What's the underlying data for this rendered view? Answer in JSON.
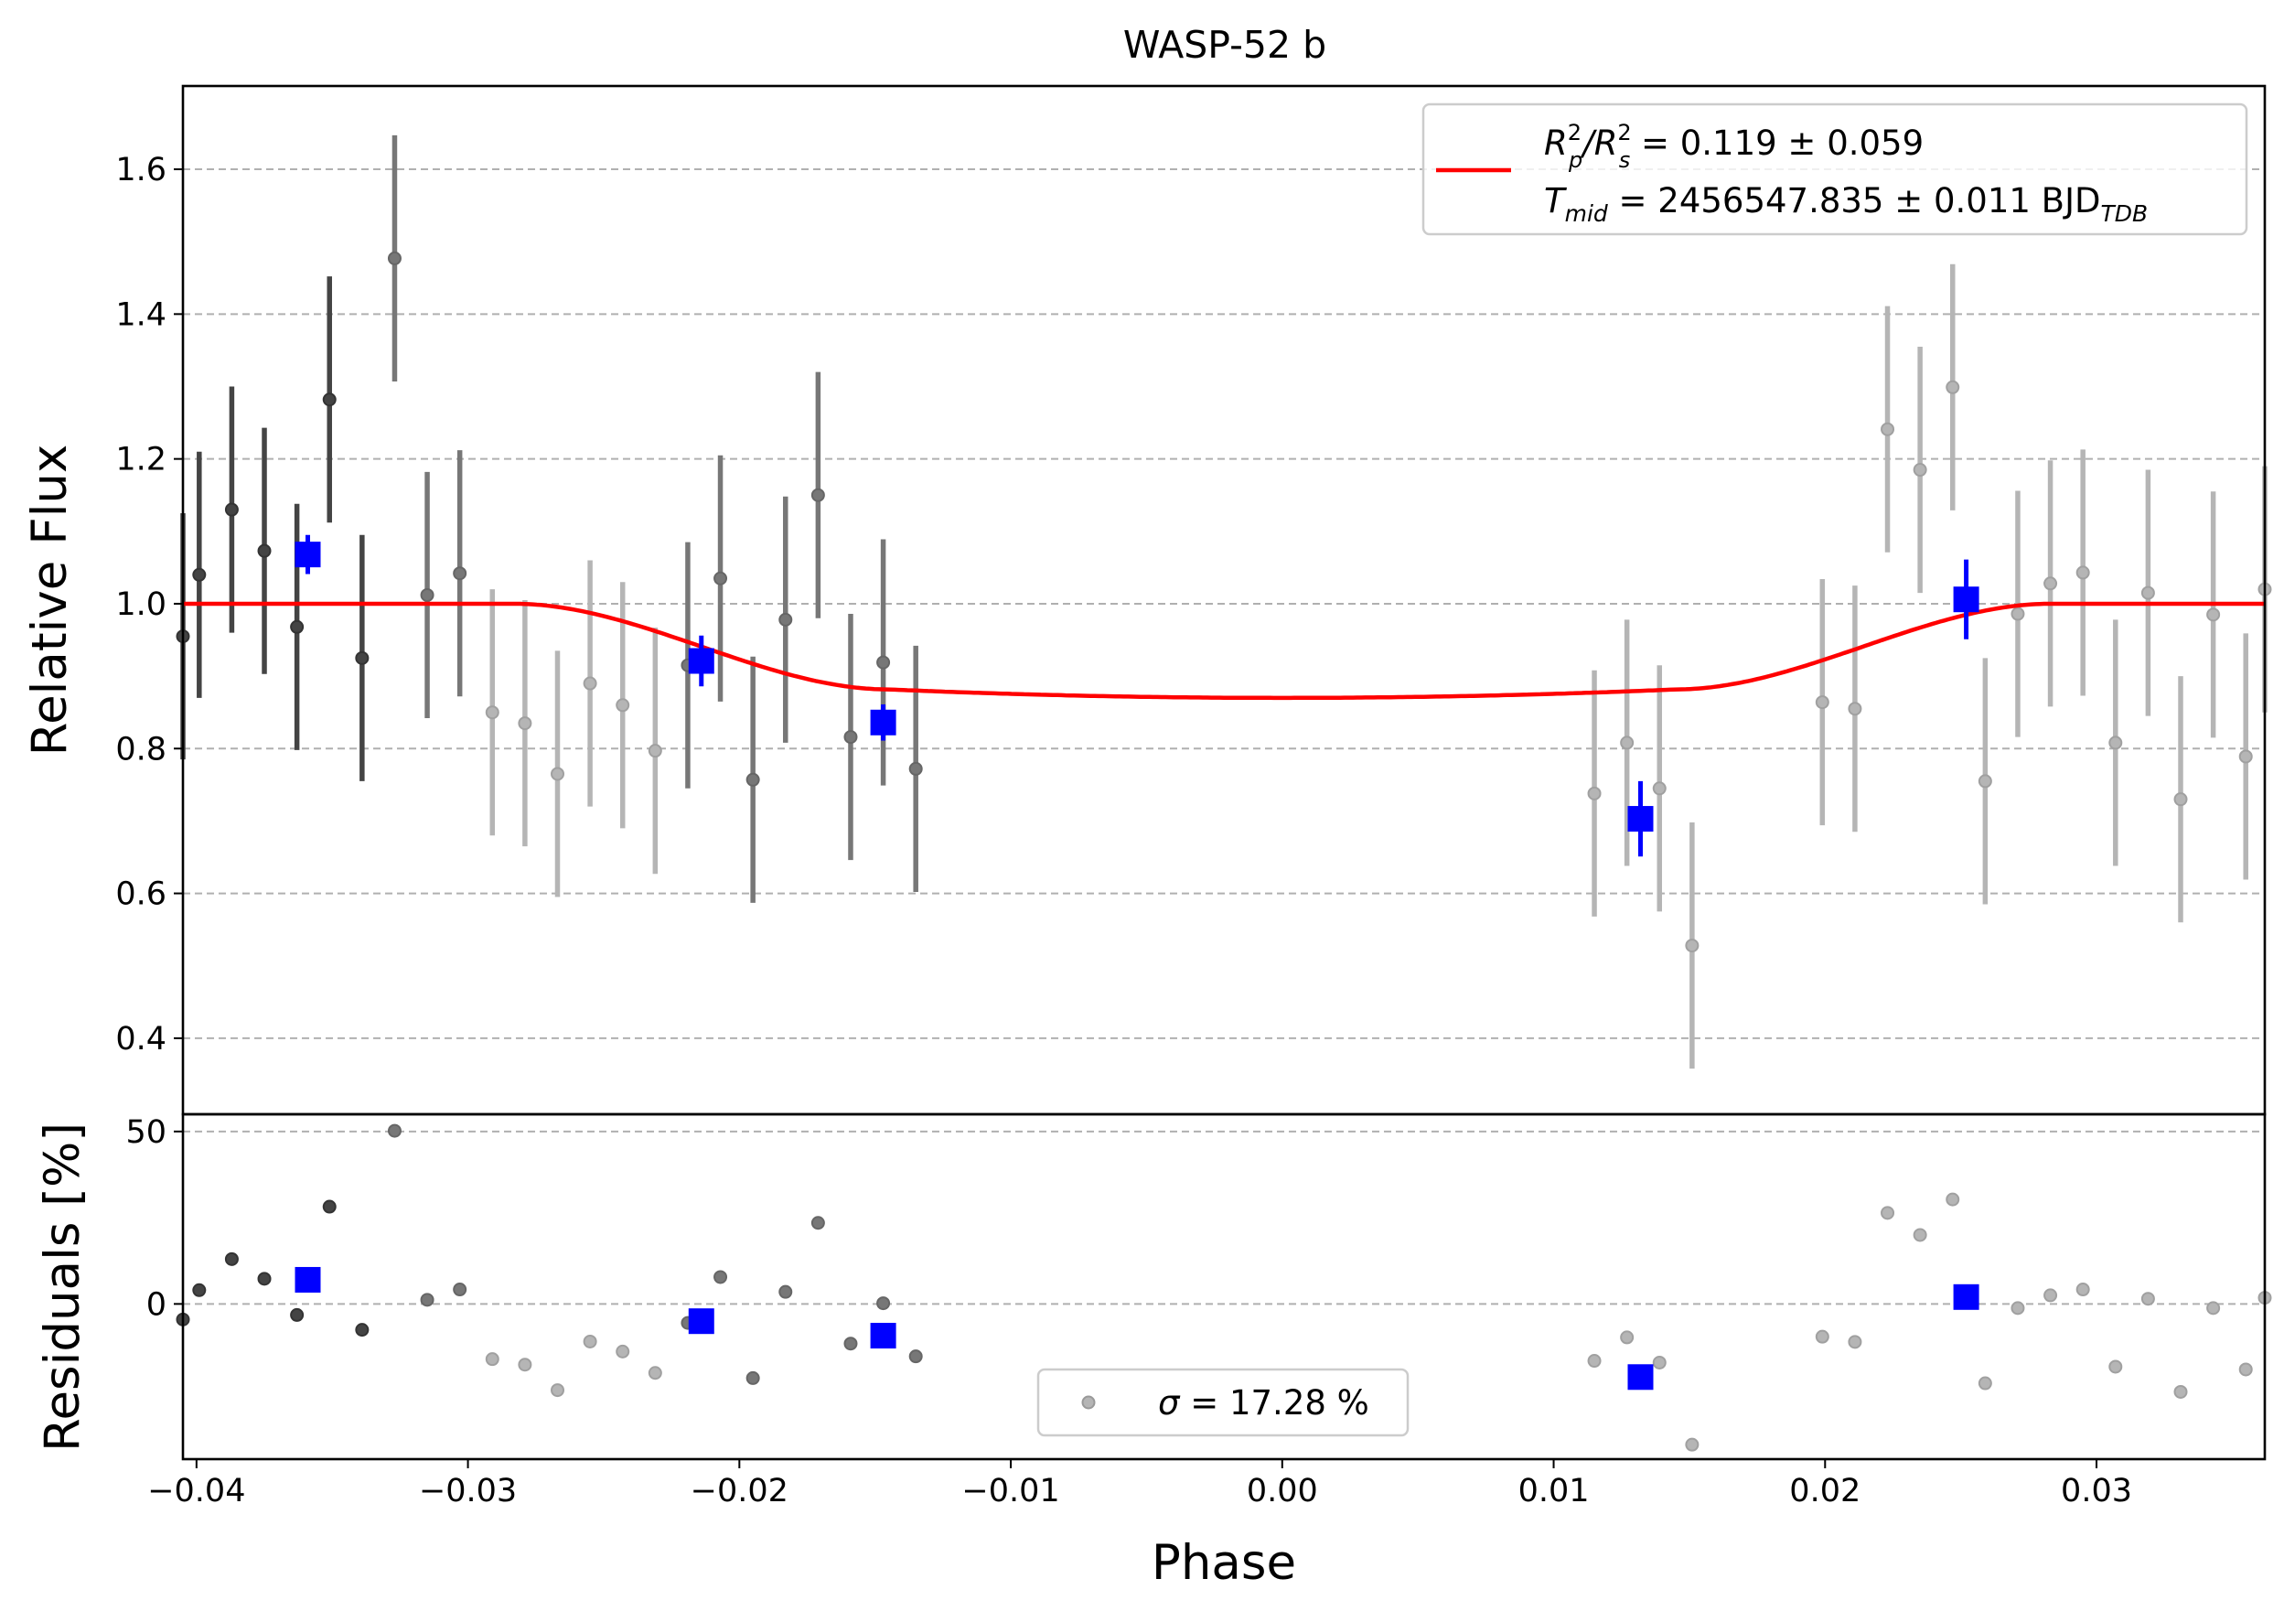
{
  "chart_data": {
    "type": "scatter",
    "title": "WASP-52 b",
    "xlabel": "Phase",
    "xlim": [
      -0.0405,
      0.0362
    ],
    "xticks": [
      "−0.04",
      "−0.03",
      "−0.02",
      "−0.01",
      "0.00",
      "0.01",
      "0.02",
      "0.03"
    ],
    "xtick_values": [
      -0.04,
      -0.03,
      -0.02,
      -0.01,
      0.0,
      0.01,
      0.02,
      0.03
    ],
    "top_panel": {
      "ylabel": "Relative Flux",
      "ylim": [
        0.295,
        1.715
      ],
      "yticks": [
        "0.4",
        "0.6",
        "0.8",
        "1.0",
        "1.2",
        "1.4",
        "1.6"
      ],
      "ytick_values": [
        0.4,
        0.6,
        0.8,
        1.0,
        1.2,
        1.4,
        1.6
      ],
      "grid": "horizontal dashed",
      "legend_placement": "upper right",
      "legend": {
        "line1": {
          "main": "R",
          "sup1": "2",
          "sub1": "p",
          "mid": "/R",
          "sup2": "2",
          "sub2": "s",
          "rest": " = 0.119 ± 0.059"
        },
        "line2": {
          "main": "T",
          "sub1": "mid",
          "rest": " = 2456547.835 ± 0.011 BJD",
          "sub2": "TDB"
        }
      },
      "model": {
        "name": "transit model",
        "color": "#ff0000",
        "depth": 0.13,
        "t1": -0.0283,
        "t2": -0.0145,
        "t3": 0.0145,
        "t4": 0.0283
      },
      "series": [
        {
          "name": "dark points",
          "color": "#444444",
          "points": [
            {
              "x": -0.0405,
              "y": 0.955,
              "err": 0.17
            },
            {
              "x": -0.0399,
              "y": 1.04,
              "err": 0.17
            },
            {
              "x": -0.0387,
              "y": 1.13,
              "err": 0.17
            },
            {
              "x": -0.0375,
              "y": 1.073,
              "err": 0.17
            },
            {
              "x": -0.0363,
              "y": 0.968,
              "err": 0.17
            },
            {
              "x": -0.0351,
              "y": 1.282,
              "err": 0.17
            },
            {
              "x": -0.0339,
              "y": 0.925,
              "err": 0.17
            }
          ]
        },
        {
          "name": "medium points",
          "color": "#777777",
          "points": [
            {
              "x": -0.0327,
              "y": 1.477,
              "err": 0.17
            },
            {
              "x": -0.0315,
              "y": 1.012,
              "err": 0.17
            },
            {
              "x": -0.0303,
              "y": 1.042,
              "err": 0.17
            },
            {
              "x": -0.0219,
              "y": 0.915,
              "err": 0.17
            },
            {
              "x": -0.0207,
              "y": 1.035,
              "err": 0.17
            },
            {
              "x": -0.0195,
              "y": 0.757,
              "err": 0.17
            },
            {
              "x": -0.0183,
              "y": 0.978,
              "err": 0.17
            },
            {
              "x": -0.0171,
              "y": 1.15,
              "err": 0.17
            },
            {
              "x": -0.0159,
              "y": 0.816,
              "err": 0.17
            },
            {
              "x": -0.0147,
              "y": 0.919,
              "err": 0.17
            },
            {
              "x": -0.0135,
              "y": 0.772,
              "err": 0.17
            }
          ]
        },
        {
          "name": "light points",
          "color": "#b5b5b5",
          "points": [
            {
              "x": -0.0291,
              "y": 0.85,
              "err": 0.17
            },
            {
              "x": -0.0279,
              "y": 0.835,
              "err": 0.17
            },
            {
              "x": -0.0267,
              "y": 0.765,
              "err": 0.17
            },
            {
              "x": -0.0255,
              "y": 0.89,
              "err": 0.17
            },
            {
              "x": -0.0243,
              "y": 0.86,
              "err": 0.17
            },
            {
              "x": -0.0231,
              "y": 0.797,
              "err": 0.17
            },
            {
              "x": 0.0115,
              "y": 0.738,
              "err": 0.17
            },
            {
              "x": 0.0127,
              "y": 0.808,
              "err": 0.17
            },
            {
              "x": 0.0139,
              "y": 0.745,
              "err": 0.17
            },
            {
              "x": 0.0151,
              "y": 0.528,
              "err": 0.17
            },
            {
              "x": 0.0199,
              "y": 0.864,
              "err": 0.17
            },
            {
              "x": 0.0211,
              "y": 0.855,
              "err": 0.17
            },
            {
              "x": 0.0223,
              "y": 1.241,
              "err": 0.17
            },
            {
              "x": 0.0235,
              "y": 1.185,
              "err": 0.17
            },
            {
              "x": 0.0247,
              "y": 1.299,
              "err": 0.17
            },
            {
              "x": 0.0259,
              "y": 0.755,
              "err": 0.17
            },
            {
              "x": 0.0271,
              "y": 0.986,
              "err": 0.17
            },
            {
              "x": 0.0283,
              "y": 1.028,
              "err": 0.17
            },
            {
              "x": 0.0295,
              "y": 1.043,
              "err": 0.17
            },
            {
              "x": 0.0307,
              "y": 0.808,
              "err": 0.17
            },
            {
              "x": 0.0319,
              "y": 1.015,
              "err": 0.17
            },
            {
              "x": 0.0331,
              "y": 0.73,
              "err": 0.17
            },
            {
              "x": 0.0343,
              "y": 0.985,
              "err": 0.17
            },
            {
              "x": 0.0355,
              "y": 0.789,
              "err": 0.17
            },
            {
              "x": 0.0362,
              "y": 1.02,
              "err": 0.17
            }
          ]
        },
        {
          "name": "binned",
          "color": "#0000ff",
          "points": [
            {
              "x": -0.0359,
              "y": 1.068,
              "err": 0.027
            },
            {
              "x": -0.0214,
              "y": 0.921,
              "err": 0.035
            },
            {
              "x": -0.0147,
              "y": 0.836,
              "err": 0.025
            },
            {
              "x": 0.0132,
              "y": 0.703,
              "err": 0.052
            },
            {
              "x": 0.0252,
              "y": 1.006,
              "err": 0.055
            }
          ]
        }
      ]
    },
    "bottom_panel": {
      "ylabel": "Residuals [%]",
      "ylim": [
        -45,
        55
      ],
      "yticks": [
        "0",
        "50"
      ],
      "ytick_values": [
        0,
        50
      ],
      "grid": "horizontal dashed",
      "legend_placement": "lower center",
      "legend": {
        "greek": "σ",
        "rest": " = 17.28 %"
      },
      "series": [
        {
          "name": "dark residuals",
          "color": "#444444",
          "points": [
            {
              "x": -0.0405,
              "y": -4.5
            },
            {
              "x": -0.0399,
              "y": 4
            },
            {
              "x": -0.0387,
              "y": 13
            },
            {
              "x": -0.0375,
              "y": 7.3
            },
            {
              "x": -0.0363,
              "y": -3.2
            },
            {
              "x": -0.0351,
              "y": 28.2
            },
            {
              "x": -0.0339,
              "y": -7.5
            }
          ]
        },
        {
          "name": "medium residuals",
          "color": "#777777",
          "points": [
            {
              "x": -0.0327,
              "y": 50.2
            },
            {
              "x": -0.0315,
              "y": 1.2
            },
            {
              "x": -0.0303,
              "y": 4.2
            },
            {
              "x": -0.0219,
              "y": -5.5
            },
            {
              "x": -0.0207,
              "y": 7.8
            },
            {
              "x": -0.0195,
              "y": -21.5
            },
            {
              "x": -0.0183,
              "y": 3.5
            },
            {
              "x": -0.0171,
              "y": 23.5
            },
            {
              "x": -0.0159,
              "y": -11.5
            },
            {
              "x": -0.0147,
              "y": 0.2
            },
            {
              "x": -0.0135,
              "y": -15.2
            }
          ]
        },
        {
          "name": "light residuals",
          "color": "#b5b5b5",
          "points": [
            {
              "x": -0.0291,
              "y": -16
            },
            {
              "x": -0.0279,
              "y": -17.6
            },
            {
              "x": -0.0267,
              "y": -25
            },
            {
              "x": -0.0255,
              "y": -10.9
            },
            {
              "x": -0.0243,
              "y": -13.8
            },
            {
              "x": -0.0231,
              "y": -20
            },
            {
              "x": 0.0115,
              "y": -16.5
            },
            {
              "x": 0.0127,
              "y": -9.7
            },
            {
              "x": 0.0139,
              "y": -17
            },
            {
              "x": 0.0151,
              "y": -40.8
            },
            {
              "x": 0.0199,
              "y": -9.5
            },
            {
              "x": 0.0211,
              "y": -11
            },
            {
              "x": 0.0223,
              "y": 26.4
            },
            {
              "x": 0.0235,
              "y": 20
            },
            {
              "x": 0.0247,
              "y": 30.3
            },
            {
              "x": 0.0259,
              "y": -23
            },
            {
              "x": 0.0271,
              "y": -1.2
            },
            {
              "x": 0.0283,
              "y": 2.5
            },
            {
              "x": 0.0295,
              "y": 4.2
            },
            {
              "x": 0.0307,
              "y": -18.2
            },
            {
              "x": 0.0319,
              "y": 1.5
            },
            {
              "x": 0.0331,
              "y": -25.5
            },
            {
              "x": 0.0343,
              "y": -1.2
            },
            {
              "x": 0.0355,
              "y": -19
            },
            {
              "x": 0.0362,
              "y": 1.8
            }
          ]
        },
        {
          "name": "binned residuals",
          "color": "#0000ff",
          "points": [
            {
              "x": -0.0359,
              "y": 7
            },
            {
              "x": -0.0214,
              "y": -5
            },
            {
              "x": -0.0147,
              "y": -9.2
            },
            {
              "x": 0.0132,
              "y": -21.2
            },
            {
              "x": 0.0252,
              "y": 2
            }
          ]
        }
      ]
    }
  }
}
